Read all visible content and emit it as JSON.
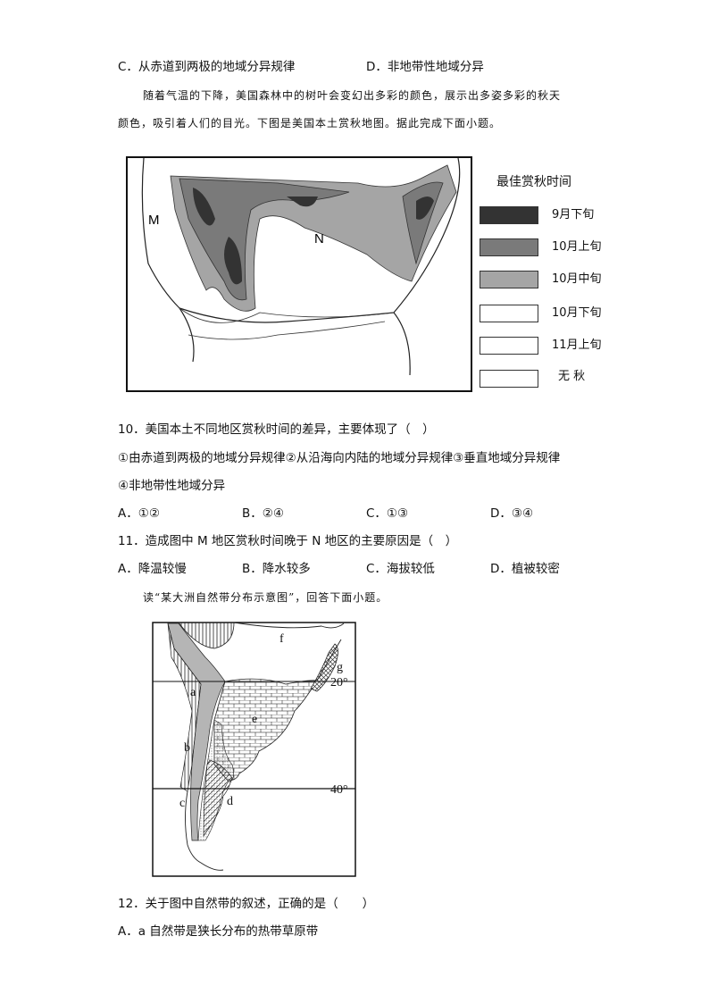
{
  "prev_options": {
    "c": "C．从赤道到两极的地域分异规律",
    "d": "D．非地带性地域分异"
  },
  "intro1": {
    "line1": "随着气温的下降，美国森林中的树叶会变幻出多彩的颜色，展示出多姿多彩的秋天",
    "line2": "颜色，吸引着人们的目光。下图是美国本土赏秋地图。据此完成下面小题。"
  },
  "map1": {
    "labels": {
      "m": "M",
      "n": "N"
    },
    "legend": {
      "title": "最佳赏秋时间",
      "items": [
        {
          "label": "9月下旬",
          "color": "#333333"
        },
        {
          "label": "10月上旬",
          "color": "#7a7a7a"
        },
        {
          "label": "10月中旬",
          "color": "#a5a5a5"
        },
        {
          "label": "10月下旬",
          "color": "#ffffff"
        },
        {
          "label": "11月上旬",
          "color": "#ffffff"
        },
        {
          "label": "无 秋",
          "color": "#ffffff"
        }
      ]
    }
  },
  "q10": {
    "stem": "10．美国本土不同地区赏秋时间的差异，主要体现了（　）",
    "line1": "①由赤道到两极的地域分异规律②从沿海向内陆的地域分异规律③垂直地域分异规律",
    "line2": "④非地带性地域分异",
    "options": [
      "A．①②",
      "B．②④",
      "C．①③",
      "D．③④"
    ]
  },
  "q11": {
    "stem": "11．造成图中 M 地区赏秋时间晚于 N 地区的主要原因是（　）",
    "options": [
      "A．降温较慢",
      "B．降水较多",
      "C．海拔较低",
      "D．植被较密"
    ]
  },
  "intro2": "读“某大洲自然带分布示意图”，回答下面小题。",
  "map2": {
    "labels": {
      "a": "a",
      "b": "b",
      "c": "c",
      "d": "d",
      "e": "e",
      "f": "f",
      "g": "g"
    },
    "lat1": "20°",
    "lat2": "40°"
  },
  "q12": {
    "stem": "12．关于图中自然带的叙述，正确的是（　　）",
    "option_a": "A．a 自然带是狭长分布的热带草原带"
  }
}
